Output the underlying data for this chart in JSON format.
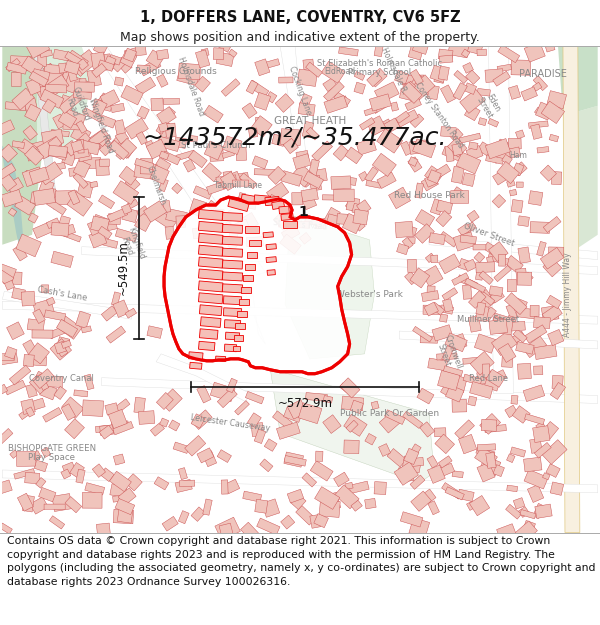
{
  "title_line1": "1, DOFFERS LANE, COVENTRY, CV6 5FZ",
  "title_line2": "Map shows position and indicative extent of the property.",
  "title_fontsize": 10.5,
  "subtitle_fontsize": 9,
  "footer_text_parts": [
    "Contains OS data © Crown copyright and database right 2021. This information is subject ",
    "to Crown copyright and database rights 2023 and is reproduced with the permission of ",
    "HM Land Registry. The polygons (including the associated geometry, namely x, y ",
    "co-ordinates) are subject to Crown copyright and database rights 2023 Ordnance Survey ",
    "100026316."
  ],
  "footer_fontsize": 7.8,
  "area_label": "~143572m²/~35.477ac.",
  "area_fontsize": 18,
  "height_label": "~549.5m",
  "width_label": "~572.9m",
  "dimension_fontsize": 8.5,
  "property_label": "1",
  "bg_color": "#ffffff",
  "map_bg_color": "#f2ede8",
  "building_fill": "#f0c4bc",
  "building_edge": "#cc5555",
  "road_fill": "#ffffff",
  "green_fill": "#ddeedd",
  "green_dark": "#c8ddc0",
  "water_fill": "#b8d4cc",
  "highlight_stroke": "#ee0000",
  "highlight_fill": "#ffffff",
  "dim_line_color": "#111111",
  "label_color": "#333333",
  "map_text_color": "#888888"
}
